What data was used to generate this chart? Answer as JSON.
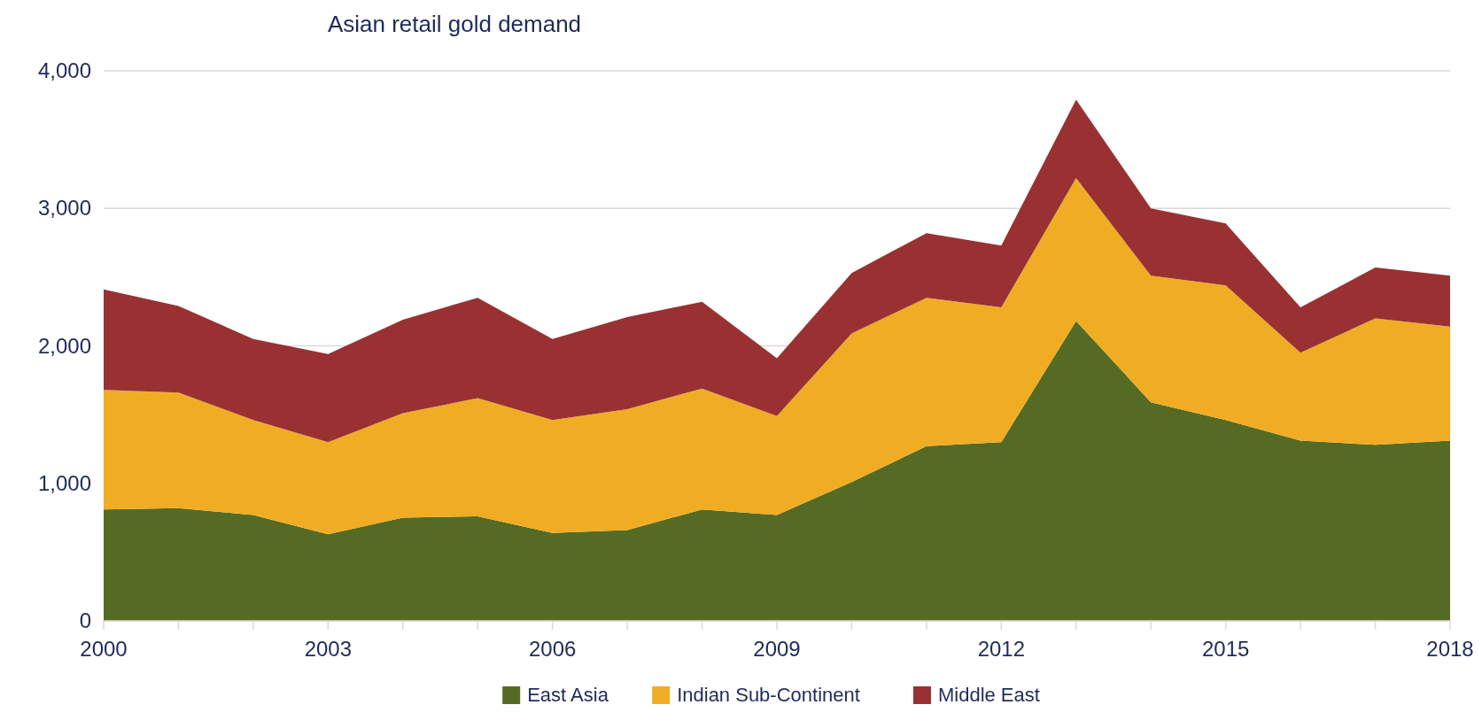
{
  "chart_data": {
    "type": "area",
    "stacked": true,
    "title": "Asian retail gold demand",
    "x": [
      2000,
      2001,
      2002,
      2003,
      2004,
      2005,
      2006,
      2007,
      2008,
      2009,
      2010,
      2011,
      2012,
      2013,
      2014,
      2015,
      2016,
      2017,
      2018
    ],
    "series": [
      {
        "name": "East Asia",
        "color": "#556b23",
        "values": [
          810,
          820,
          770,
          630,
          750,
          760,
          640,
          660,
          810,
          770,
          1010,
          1270,
          1300,
          2180,
          1590,
          1460,
          1310,
          1280,
          1310
        ]
      },
      {
        "name": "Indian Sub-Continent",
        "color": "#f0ad24",
        "values": [
          870,
          840,
          690,
          670,
          760,
          860,
          820,
          880,
          880,
          720,
          1080,
          1080,
          980,
          1040,
          920,
          980,
          640,
          920,
          830
        ]
      },
      {
        "name": "Middle East",
        "color": "#993133",
        "values": [
          730,
          630,
          590,
          640,
          680,
          730,
          590,
          670,
          630,
          420,
          440,
          470,
          450,
          570,
          490,
          450,
          330,
          370,
          370
        ]
      }
    ],
    "xlim": [
      2000,
      2018
    ],
    "xticks": [
      2000,
      {
        "value": 2001,
        "label": null
      },
      {
        "value": 2002,
        "label": null
      },
      2003,
      {
        "value": 2004,
        "label": null
      },
      {
        "value": 2005,
        "label": null
      },
      2006,
      {
        "value": 2007,
        "label": null
      },
      {
        "value": 2008,
        "label": null
      },
      2009,
      {
        "value": 2010,
        "label": null
      },
      {
        "value": 2011,
        "label": null
      },
      2012,
      {
        "value": 2013,
        "label": null
      },
      {
        "value": 2014,
        "label": null
      },
      2015,
      {
        "value": 2016,
        "label": null
      },
      {
        "value": 2017,
        "label": null
      },
      2018
    ],
    "ylim": [
      0,
      4000
    ],
    "yticks": [
      {
        "value": 0,
        "label": "0"
      },
      {
        "value": 1000,
        "label": "1,000"
      },
      {
        "value": 2000,
        "label": "2,000"
      },
      {
        "value": 3000,
        "label": "3,000"
      },
      {
        "value": 4000,
        "label": "4,000"
      }
    ],
    "grid": "y",
    "legend": "bottom"
  }
}
